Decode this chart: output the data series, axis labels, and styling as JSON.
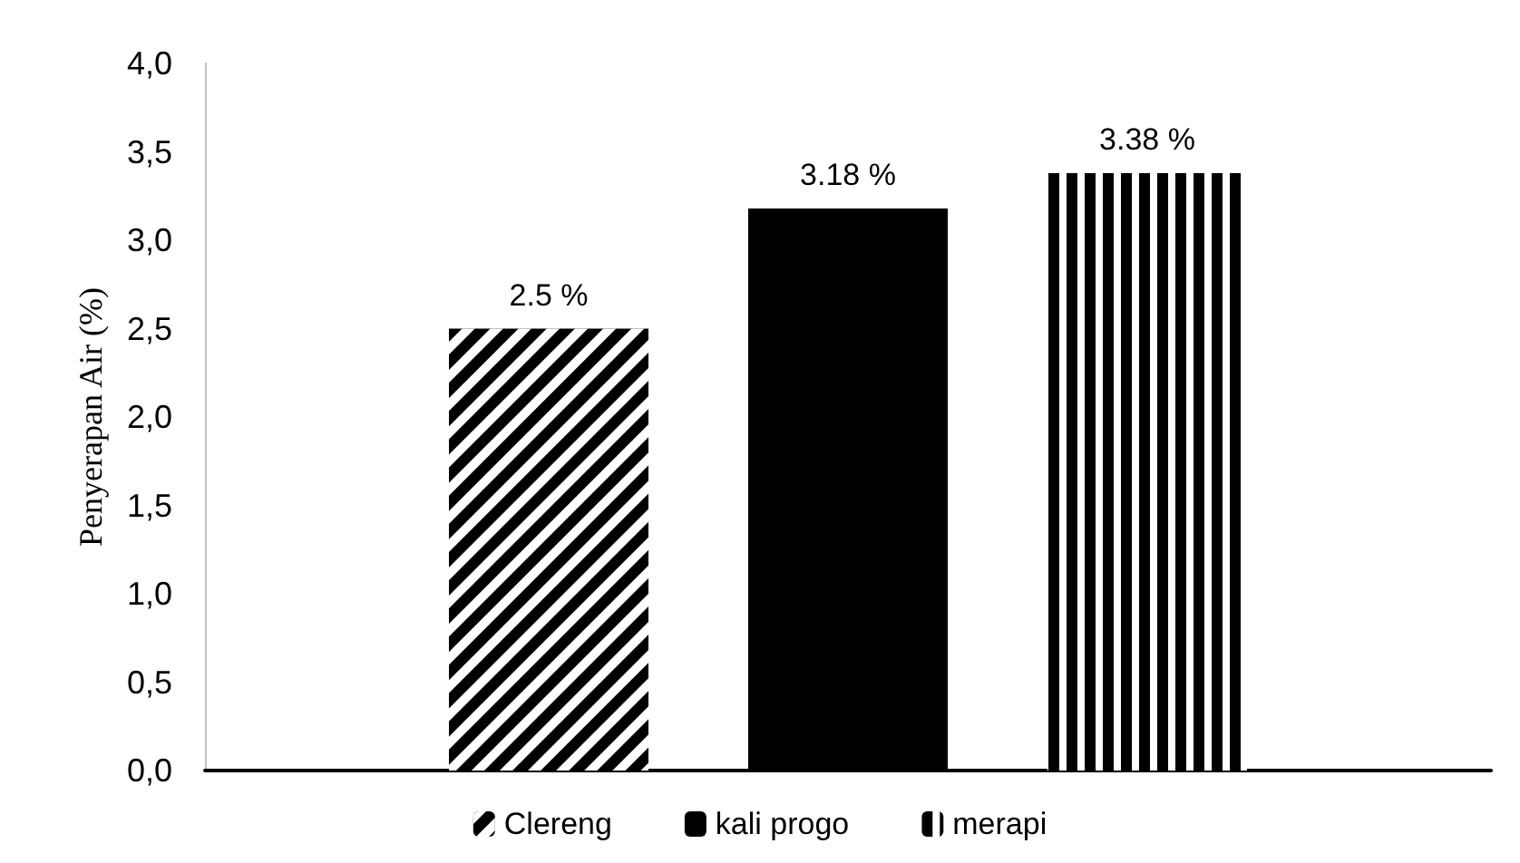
{
  "chart_data": {
    "type": "bar",
    "ylabel": "Penyerapan Air (%)",
    "categories": [
      null
    ],
    "series": [
      {
        "name": "Clereng",
        "color": "#000000",
        "values": [
          2.5
        ],
        "value_labels": [
          "2.5 %"
        ]
      },
      {
        "name": "kali progo",
        "color": "#000000",
        "values": [
          3.18
        ],
        "value_labels": [
          "3.18 %"
        ]
      },
      {
        "name": "merapi",
        "color": "#000000",
        "values": [
          3.38
        ],
        "value_labels": [
          "3.38 %"
        ]
      }
    ],
    "ylim": [
      0,
      4
    ],
    "yticks": [
      {
        "value": 0,
        "label": "0,0"
      },
      {
        "value": 0.5,
        "label": "0,5"
      },
      {
        "value": 1,
        "label": "1,0"
      },
      {
        "value": 1.5,
        "label": "1,5"
      },
      {
        "value": 2,
        "label": "2,0"
      },
      {
        "value": 2.5,
        "label": "2,5"
      },
      {
        "value": 3,
        "label": "3,0"
      },
      {
        "value": 3.5,
        "label": "3,5"
      },
      {
        "value": 4,
        "label": "4,0"
      }
    ],
    "grid": false,
    "legend": "bottom"
  }
}
